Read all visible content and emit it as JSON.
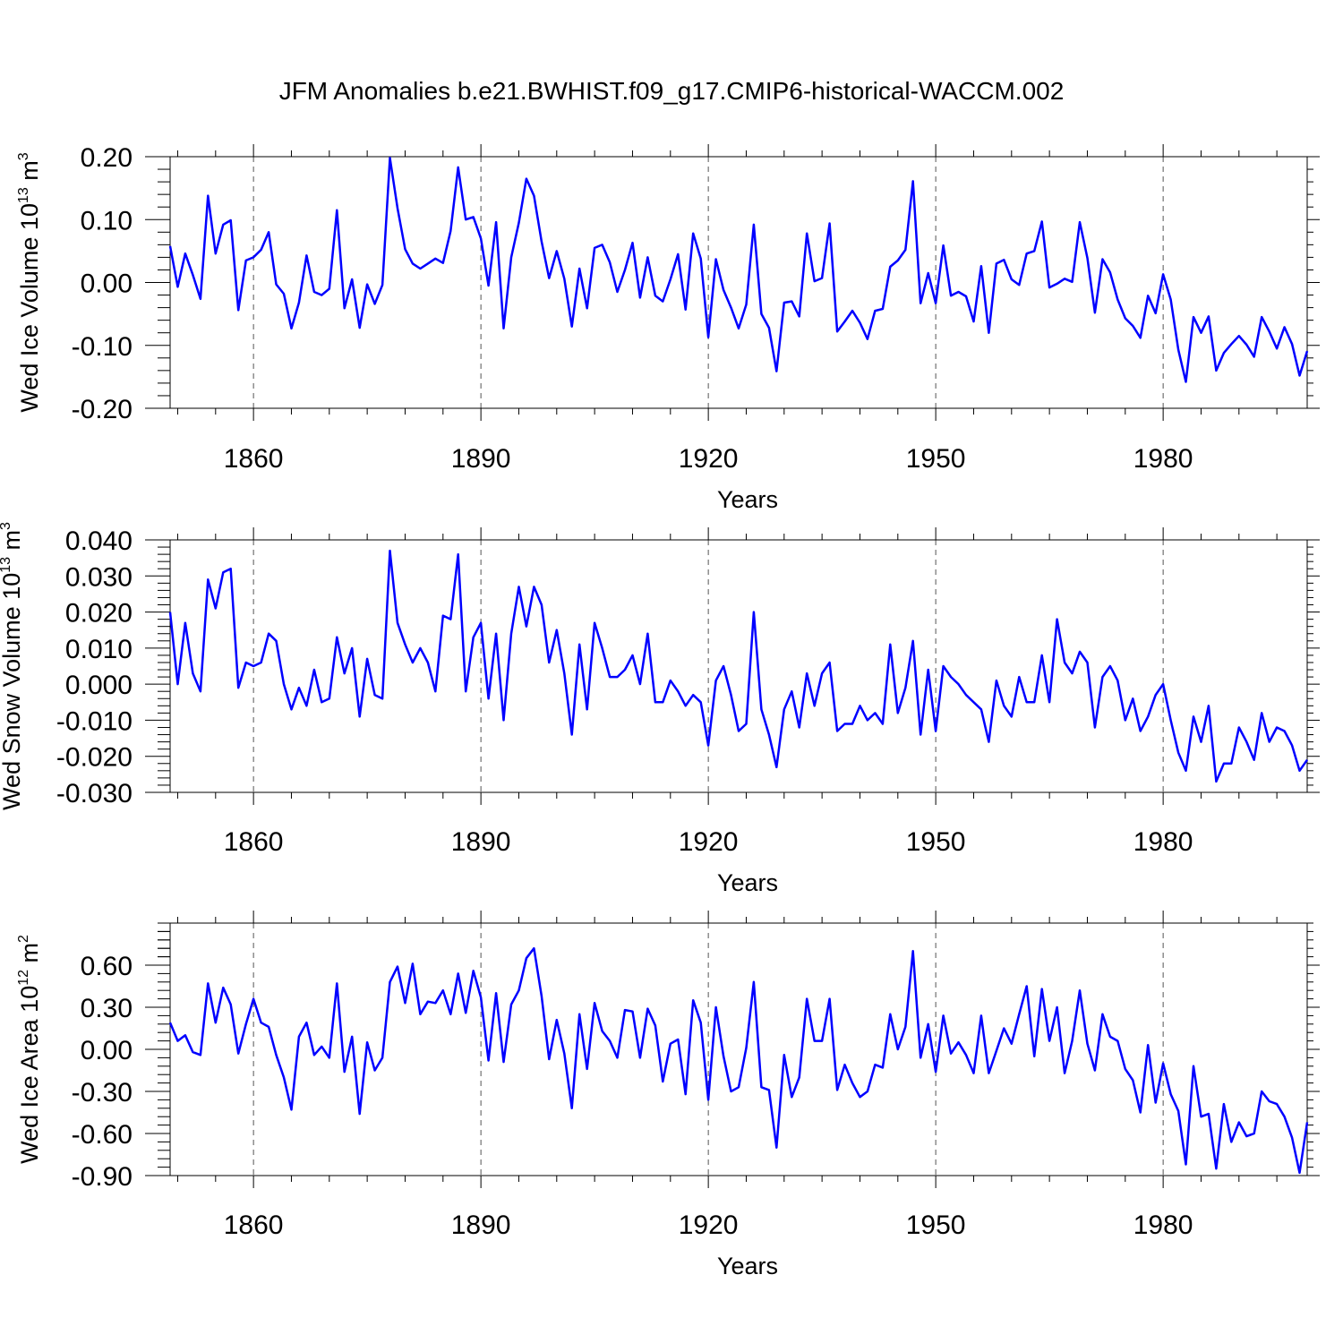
{
  "title": "JFM Anomalies b.e21.BWHIST.f09_g17.CMIP6-historical-WACCM.002",
  "colors": {
    "line": "#0000ff",
    "grid": "#555555",
    "axis": "#000000"
  },
  "chart_data": [
    {
      "type": "line",
      "ylabel": "Wed Ice Volume 10",
      "ylabel_exp": "13",
      "ylabel_unit": " m",
      "ylabel_unit_exp": "3",
      "xlabel": "Years",
      "xlim": [
        1849,
        1999
      ],
      "ylim": [
        -0.2,
        0.2
      ],
      "yticks": [
        -0.2,
        -0.1,
        0.0,
        0.1,
        0.2
      ],
      "ytick_labels": [
        "-0.20",
        "-0.10",
        "0.00",
        "0.10",
        "0.20"
      ],
      "xticks": [
        1860,
        1890,
        1920,
        1950,
        1980
      ],
      "xtick_labels": [
        "1860",
        "1890",
        "1920",
        "1950",
        "1980"
      ],
      "grid_x": true,
      "x_start": 1849,
      "values": [
        0.058,
        -0.007,
        0.046,
        0.012,
        -0.026,
        0.138,
        0.046,
        0.092,
        0.099,
        -0.044,
        0.035,
        0.04,
        0.052,
        0.08,
        -0.003,
        -0.018,
        -0.073,
        -0.032,
        0.043,
        -0.015,
        -0.02,
        -0.01,
        0.115,
        -0.041,
        0.005,
        -0.072,
        -0.003,
        -0.034,
        -0.004,
        0.198,
        0.118,
        0.053,
        0.03,
        0.022,
        0.03,
        0.038,
        0.031,
        0.082,
        0.183,
        0.1,
        0.104,
        0.07,
        -0.005,
        0.096,
        -0.073,
        0.04,
        0.095,
        0.165,
        0.138,
        0.065,
        0.007,
        0.05,
        0.006,
        -0.07,
        0.022,
        -0.041,
        0.055,
        0.06,
        0.032,
        -0.015,
        0.02,
        0.063,
        -0.024,
        0.04,
        -0.021,
        -0.03,
        0.005,
        0.045,
        -0.043,
        0.078,
        0.038,
        -0.087,
        0.037,
        -0.012,
        -0.04,
        -0.073,
        -0.035,
        0.092,
        -0.05,
        -0.072,
        -0.141,
        -0.032,
        -0.03,
        -0.054,
        0.078,
        0.002,
        0.007,
        0.094,
        -0.078,
        -0.062,
        -0.045,
        -0.064,
        -0.09,
        -0.045,
        -0.042,
        0.025,
        0.035,
        0.052,
        0.161,
        -0.033,
        0.015,
        -0.033,
        0.059,
        -0.021,
        -0.015,
        -0.022,
        -0.062,
        0.026,
        -0.08,
        0.03,
        0.036,
        0.005,
        -0.004,
        0.046,
        0.05,
        0.097,
        -0.008,
        -0.002,
        0.006,
        0.001,
        0.096,
        0.039,
        -0.048,
        0.037,
        0.016,
        -0.027,
        -0.057,
        -0.069,
        -0.088,
        -0.021,
        -0.049,
        0.013,
        -0.027,
        -0.107,
        -0.158,
        -0.055,
        -0.08,
        -0.054,
        -0.14,
        -0.112,
        -0.098,
        -0.085,
        -0.099,
        -0.118,
        -0.055,
        -0.078,
        -0.105,
        -0.071,
        -0.098,
        -0.148,
        -0.109
      ]
    },
    {
      "type": "line",
      "ylabel": "Wed Snow Volume 10",
      "ylabel_exp": "13",
      "ylabel_unit": " m",
      "ylabel_unit_exp": "3",
      "xlabel": "Years",
      "xlim": [
        1849,
        1999
      ],
      "ylim": [
        -0.03,
        0.04
      ],
      "yticks": [
        -0.03,
        -0.02,
        -0.01,
        0.0,
        0.01,
        0.02,
        0.03,
        0.04
      ],
      "ytick_labels": [
        "-0.030",
        "-0.020",
        "-0.010",
        "0.000",
        "0.010",
        "0.020",
        "0.030",
        "0.040"
      ],
      "xticks": [
        1860,
        1890,
        1920,
        1950,
        1980
      ],
      "xtick_labels": [
        "1860",
        "1890",
        "1920",
        "1950",
        "1980"
      ],
      "grid_x": true,
      "x_start": 1849,
      "values": [
        0.02,
        0.0,
        0.017,
        0.003,
        -0.002,
        0.029,
        0.021,
        0.031,
        0.032,
        -0.001,
        0.006,
        0.005,
        0.006,
        0.014,
        0.012,
        0.0,
        -0.007,
        -0.001,
        -0.006,
        0.004,
        -0.005,
        -0.004,
        0.013,
        0.003,
        0.01,
        -0.009,
        0.007,
        -0.003,
        -0.004,
        0.037,
        0.017,
        0.011,
        0.006,
        0.01,
        0.006,
        -0.002,
        0.019,
        0.018,
        0.036,
        -0.002,
        0.013,
        0.017,
        -0.004,
        0.014,
        -0.01,
        0.014,
        0.027,
        0.016,
        0.027,
        0.022,
        0.006,
        0.015,
        0.003,
        -0.014,
        0.011,
        -0.007,
        0.017,
        0.01,
        0.002,
        0.002,
        0.004,
        0.008,
        0.0,
        0.014,
        -0.005,
        -0.005,
        0.001,
        -0.002,
        -0.006,
        -0.003,
        -0.005,
        -0.017,
        0.001,
        0.005,
        -0.003,
        -0.013,
        -0.011,
        0.02,
        -0.007,
        -0.014,
        -0.023,
        -0.007,
        -0.002,
        -0.012,
        0.003,
        -0.006,
        0.003,
        0.006,
        -0.013,
        -0.011,
        -0.011,
        -0.006,
        -0.01,
        -0.008,
        -0.011,
        0.011,
        -0.008,
        -0.001,
        0.012,
        -0.014,
        0.004,
        -0.013,
        0.005,
        0.002,
        0.0,
        -0.003,
        -0.005,
        -0.007,
        -0.016,
        0.001,
        -0.006,
        -0.009,
        0.002,
        -0.005,
        -0.005,
        0.008,
        -0.005,
        0.018,
        0.006,
        0.003,
        0.009,
        0.006,
        -0.012,
        0.002,
        0.005,
        0.001,
        -0.01,
        -0.004,
        -0.013,
        -0.009,
        -0.003,
        0.0,
        -0.01,
        -0.019,
        -0.024,
        -0.009,
        -0.016,
        -0.006,
        -0.027,
        -0.022,
        -0.022,
        -0.012,
        -0.016,
        -0.021,
        -0.008,
        -0.016,
        -0.012,
        -0.013,
        -0.017,
        -0.024,
        -0.021
      ]
    },
    {
      "type": "line",
      "ylabel": "Wed Ice Area 10",
      "ylabel_exp": "12",
      "ylabel_unit": " m",
      "ylabel_unit_exp": "2",
      "xlabel": "Years",
      "xlim": [
        1849,
        1999
      ],
      "ylim": [
        -0.9,
        0.9
      ],
      "yticks": [
        -0.9,
        -0.6,
        -0.3,
        0.0,
        0.3,
        0.6
      ],
      "ytick_labels": [
        "-0.90",
        "-0.60",
        "-0.30",
        "0.00",
        "0.30",
        "0.60"
      ],
      "xticks": [
        1860,
        1890,
        1920,
        1950,
        1980
      ],
      "xtick_labels": [
        "1860",
        "1890",
        "1920",
        "1950",
        "1980"
      ],
      "grid_x": true,
      "x_start": 1849,
      "values": [
        0.19,
        0.06,
        0.1,
        -0.02,
        -0.04,
        0.47,
        0.19,
        0.44,
        0.32,
        -0.03,
        0.18,
        0.36,
        0.19,
        0.16,
        -0.04,
        -0.2,
        -0.43,
        0.09,
        0.19,
        -0.04,
        0.02,
        -0.06,
        0.47,
        -0.16,
        0.09,
        -0.46,
        0.05,
        -0.15,
        -0.06,
        0.48,
        0.59,
        0.33,
        0.61,
        0.25,
        0.34,
        0.33,
        0.42,
        0.25,
        0.54,
        0.26,
        0.56,
        0.37,
        -0.08,
        0.4,
        -0.09,
        0.32,
        0.42,
        0.65,
        0.72,
        0.38,
        -0.07,
        0.21,
        -0.03,
        -0.42,
        0.25,
        -0.14,
        0.33,
        0.13,
        0.06,
        -0.06,
        0.28,
        0.27,
        -0.06,
        0.29,
        0.17,
        -0.23,
        0.04,
        0.07,
        -0.32,
        0.35,
        0.19,
        -0.36,
        0.3,
        -0.05,
        -0.3,
        -0.27,
        0.01,
        0.48,
        -0.27,
        -0.29,
        -0.7,
        -0.04,
        -0.34,
        -0.2,
        0.36,
        0.06,
        0.06,
        0.36,
        -0.29,
        -0.11,
        -0.24,
        -0.34,
        -0.3,
        -0.11,
        -0.13,
        0.25,
        0.0,
        0.16,
        0.7,
        -0.06,
        0.18,
        -0.16,
        0.24,
        -0.03,
        0.05,
        -0.04,
        -0.17,
        0.24,
        -0.17,
        -0.01,
        0.15,
        0.04,
        0.25,
        0.45,
        -0.05,
        0.43,
        0.06,
        0.3,
        -0.17,
        0.06,
        0.42,
        0.04,
        -0.15,
        0.25,
        0.09,
        0.06,
        -0.14,
        -0.22,
        -0.45,
        0.03,
        -0.38,
        -0.1,
        -0.32,
        -0.44,
        -0.82,
        -0.12,
        -0.48,
        -0.46,
        -0.85,
        -0.39,
        -0.66,
        -0.52,
        -0.62,
        -0.6,
        -0.3,
        -0.37,
        -0.39,
        -0.48,
        -0.63,
        -0.88,
        -0.52
      ]
    }
  ]
}
